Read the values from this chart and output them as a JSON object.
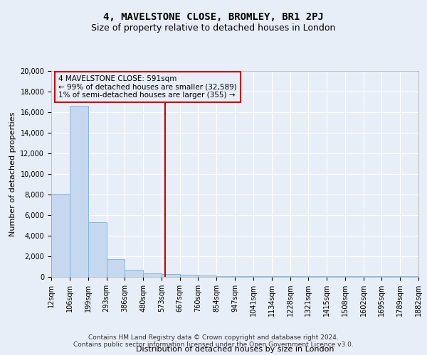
{
  "title": "4, MAVELSTONE CLOSE, BROMLEY, BR1 2PJ",
  "subtitle": "Size of property relative to detached houses in London",
  "xlabel": "Distribution of detached houses by size in London",
  "ylabel": "Number of detached properties",
  "tick_labels": [
    "12sqm",
    "106sqm",
    "199sqm",
    "293sqm",
    "386sqm",
    "480sqm",
    "573sqm",
    "667sqm",
    "760sqm",
    "854sqm",
    "947sqm",
    "1041sqm",
    "1134sqm",
    "1228sqm",
    "1321sqm",
    "1415sqm",
    "1508sqm",
    "1602sqm",
    "1695sqm",
    "1789sqm",
    "1882sqm"
  ],
  "bins": [
    12,
    106,
    199,
    293,
    386,
    480,
    573,
    667,
    760,
    854,
    947,
    1041,
    1134,
    1228,
    1321,
    1415,
    1508,
    1602,
    1695,
    1789,
    1882
  ],
  "bar_heights": [
    8100,
    16600,
    5300,
    1750,
    700,
    350,
    250,
    200,
    150,
    100,
    100,
    100,
    50,
    50,
    50,
    50,
    50,
    50,
    50,
    50
  ],
  "bar_color": "#c5d8f0",
  "bar_edgecolor": "#7ab0d8",
  "property_size": 591,
  "vline_color": "#cc0000",
  "annotation_text": "4 MAVELSTONE CLOSE: 591sqm\n← 99% of detached houses are smaller (32,589)\n1% of semi-detached houses are larger (355) →",
  "annotation_box_edgecolor": "#cc0000",
  "footnote": "Contains HM Land Registry data © Crown copyright and database right 2024.\nContains public sector information licensed under the Open Government Licence v3.0.",
  "background_color": "#e8eef8",
  "grid_color": "#ffffff",
  "ylim": [
    0,
    20000
  ],
  "yticks": [
    0,
    2000,
    4000,
    6000,
    8000,
    10000,
    12000,
    14000,
    16000,
    18000,
    20000
  ],
  "title_fontsize": 10,
  "subtitle_fontsize": 9,
  "xlabel_fontsize": 8,
  "ylabel_fontsize": 8,
  "tick_fontsize": 7,
  "annotation_fontsize": 7.5,
  "footnote_fontsize": 6.5
}
